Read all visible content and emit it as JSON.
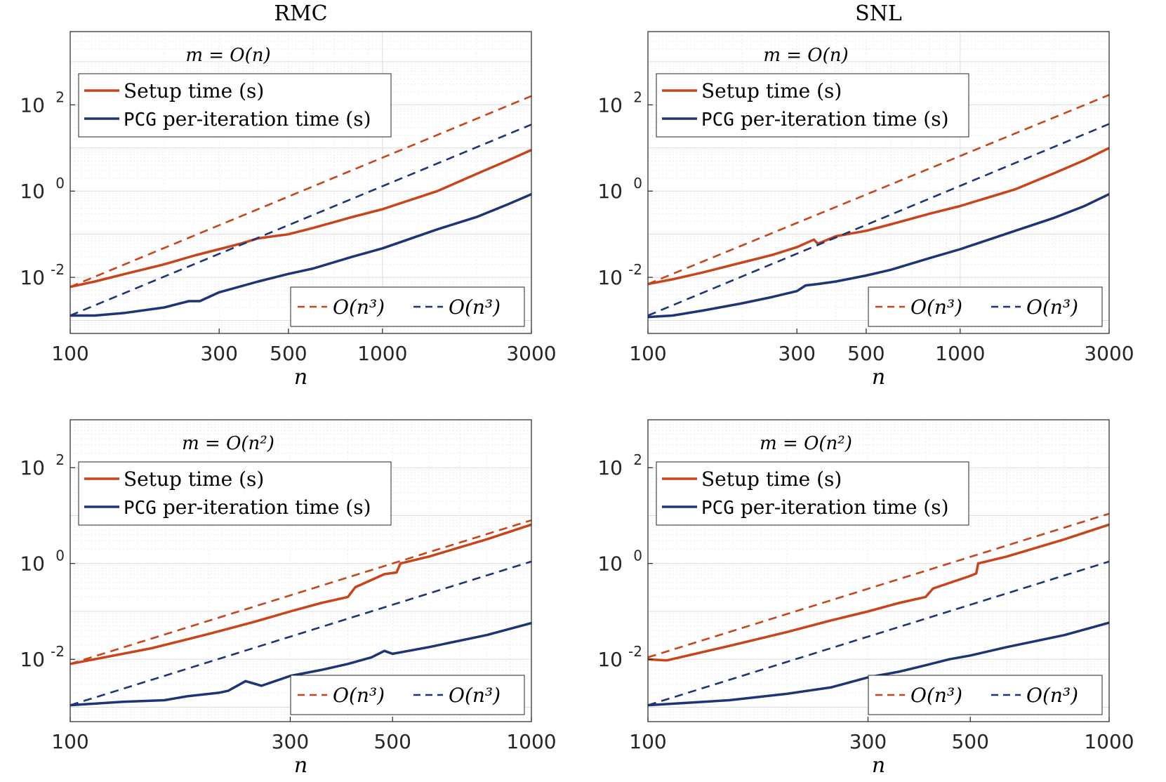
{
  "colors": {
    "setup": "#C8441B",
    "pcg": "#1F3476",
    "grid_major": "#dcdcdc",
    "grid_minor": "#ebebeb",
    "axis": "#262626"
  },
  "chart_data": [
    {
      "type": "line",
      "panel": "top-left",
      "title": "RMC",
      "annotation": "m = O(n)",
      "xlabel": "n",
      "xscale": "log",
      "yscale": "log",
      "xlim": [
        100,
        3000
      ],
      "ylim": [
        0.0005,
        5000
      ],
      "xticks": [
        100,
        300,
        500,
        1000,
        3000
      ],
      "xtick_labels": [
        "100",
        "300",
        "500",
        "1000",
        "3000"
      ],
      "yticks": [
        0.01,
        1,
        100
      ],
      "ytick_labels": [
        {
          "base": "10",
          "exp": "-2"
        },
        {
          "base": "10",
          "exp": "0"
        },
        {
          "base": "10",
          "exp": "2"
        }
      ],
      "legend_top": [
        {
          "label": "Setup time (s)",
          "mono_prefix": ""
        },
        {
          "label": " per-iteration time (s)",
          "mono_prefix": "PCG"
        }
      ],
      "legend_bottom": [
        "O(n³)",
        "O(n³)"
      ],
      "series": [
        {
          "name": "Setup time (s)",
          "color_key": "setup",
          "style": "solid",
          "x": [
            100,
            120,
            150,
            200,
            250,
            300,
            350,
            400,
            500,
            600,
            800,
            1000,
            1500,
            2000,
            2500,
            3000
          ],
          "y": [
            0.006,
            0.008,
            0.012,
            0.02,
            0.032,
            0.045,
            0.06,
            0.08,
            0.1,
            0.14,
            0.25,
            0.38,
            1.0,
            2.5,
            5.0,
            9.0
          ]
        },
        {
          "name": "PCG per-iteration time (s)",
          "color_key": "pcg",
          "style": "solid",
          "x": [
            100,
            120,
            150,
            200,
            240,
            260,
            300,
            400,
            500,
            600,
            800,
            1000,
            1500,
            2000,
            2500,
            3000
          ],
          "y": [
            0.0013,
            0.0013,
            0.0015,
            0.002,
            0.0028,
            0.0028,
            0.0045,
            0.008,
            0.012,
            0.016,
            0.03,
            0.047,
            0.13,
            0.25,
            0.48,
            0.85
          ]
        },
        {
          "name": "O(n³) setup reference",
          "color_key": "setup",
          "style": "dashed",
          "x": [
            100,
            3000
          ],
          "y": [
            0.006,
            160
          ]
        },
        {
          "name": "O(n³) PCG reference",
          "color_key": "pcg",
          "style": "dashed",
          "x": [
            100,
            3000
          ],
          "y": [
            0.0013,
            35
          ]
        }
      ]
    },
    {
      "type": "line",
      "panel": "top-right",
      "title": "SNL",
      "annotation": "m = O(n)",
      "xlabel": "n",
      "xscale": "log",
      "yscale": "log",
      "xlim": [
        100,
        3000
      ],
      "ylim": [
        0.0005,
        5000
      ],
      "xticks": [
        100,
        300,
        500,
        1000,
        3000
      ],
      "xtick_labels": [
        "100",
        "300",
        "500",
        "1000",
        "3000"
      ],
      "yticks": [
        0.01,
        1,
        100
      ],
      "ytick_labels": [
        {
          "base": "10",
          "exp": "-2"
        },
        {
          "base": "10",
          "exp": "0"
        },
        {
          "base": "10",
          "exp": "2"
        }
      ],
      "legend_top": [
        {
          "label": "Setup time (s)",
          "mono_prefix": ""
        },
        {
          "label": " per-iteration time (s)",
          "mono_prefix": "PCG"
        }
      ],
      "legend_bottom": [
        "O(n³)",
        "O(n³)"
      ],
      "series": [
        {
          "name": "Setup time (s)",
          "color_key": "setup",
          "style": "solid",
          "x": [
            100,
            120,
            150,
            200,
            250,
            300,
            340,
            350,
            400,
            500,
            600,
            800,
            1000,
            1500,
            2000,
            2500,
            3000
          ],
          "y": [
            0.007,
            0.009,
            0.013,
            0.022,
            0.033,
            0.05,
            0.075,
            0.06,
            0.09,
            0.12,
            0.17,
            0.3,
            0.45,
            1.1,
            2.6,
            5.2,
            10.0
          ]
        },
        {
          "name": "PCG per-iteration time (s)",
          "color_key": "pcg",
          "style": "solid",
          "x": [
            100,
            120,
            150,
            200,
            250,
            300,
            320,
            350,
            400,
            500,
            600,
            800,
            1000,
            1500,
            2000,
            2500,
            3000
          ],
          "y": [
            0.0012,
            0.0013,
            0.0017,
            0.0025,
            0.0035,
            0.0048,
            0.0065,
            0.007,
            0.008,
            0.011,
            0.015,
            0.028,
            0.045,
            0.12,
            0.24,
            0.45,
            0.85
          ]
        },
        {
          "name": "O(n³) setup reference",
          "color_key": "setup",
          "style": "dashed",
          "x": [
            100,
            3000
          ],
          "y": [
            0.007,
            170
          ]
        },
        {
          "name": "O(n³) PCG reference",
          "color_key": "pcg",
          "style": "dashed",
          "x": [
            100,
            3000
          ],
          "y": [
            0.0013,
            36
          ]
        }
      ]
    },
    {
      "type": "line",
      "panel": "bottom-left",
      "title": "",
      "annotation": "m = O(n²)",
      "xlabel": "n",
      "xscale": "log",
      "yscale": "log",
      "xlim": [
        100,
        1000
      ],
      "ylim": [
        0.0005,
        1000
      ],
      "xticks": [
        100,
        300,
        500,
        1000
      ],
      "xtick_labels": [
        "100",
        "300",
        "500",
        "1000"
      ],
      "yticks": [
        0.01,
        1,
        100
      ],
      "ytick_labels": [
        {
          "base": "10",
          "exp": "-2"
        },
        {
          "base": "10",
          "exp": "0"
        },
        {
          "base": "10",
          "exp": "2"
        }
      ],
      "legend_top": [
        {
          "label": "Setup time (s)",
          "mono_prefix": ""
        },
        {
          "label": " per-iteration time (s)",
          "mono_prefix": "PCG"
        }
      ],
      "legend_bottom": [
        "O(n³)",
        "O(n³)"
      ],
      "series": [
        {
          "name": "Setup time (s)",
          "color_key": "setup",
          "style": "solid",
          "x": [
            100,
            150,
            200,
            250,
            300,
            350,
            400,
            415,
            480,
            510,
            520,
            600,
            800,
            1000
          ],
          "y": [
            0.008,
            0.017,
            0.034,
            0.06,
            0.1,
            0.15,
            0.2,
            0.32,
            0.6,
            0.65,
            1.0,
            1.4,
            3.2,
            6.5
          ]
        },
        {
          "name": "PCG per-iteration time (s)",
          "color_key": "pcg",
          "style": "solid",
          "x": [
            100,
            130,
            160,
            180,
            210,
            220,
            240,
            260,
            300,
            350,
            400,
            450,
            480,
            500,
            600,
            800,
            1000
          ],
          "y": [
            0.0011,
            0.0013,
            0.0014,
            0.0017,
            0.002,
            0.0022,
            0.0035,
            0.0028,
            0.0045,
            0.006,
            0.008,
            0.011,
            0.015,
            0.013,
            0.018,
            0.032,
            0.057
          ]
        },
        {
          "name": "O(n³) setup reference",
          "color_key": "setup",
          "style": "dashed",
          "x": [
            100,
            1000
          ],
          "y": [
            0.008,
            8.0
          ]
        },
        {
          "name": "O(n³) PCG reference",
          "color_key": "pcg",
          "style": "dashed",
          "x": [
            100,
            1000
          ],
          "y": [
            0.0011,
            1.1
          ]
        }
      ]
    },
    {
      "type": "line",
      "panel": "bottom-right",
      "title": "",
      "annotation": "m = O(n²)",
      "xlabel": "n",
      "xscale": "log",
      "yscale": "log",
      "xlim": [
        100,
        1000
      ],
      "ylim": [
        0.0005,
        1000
      ],
      "xticks": [
        100,
        300,
        500,
        1000
      ],
      "xtick_labels": [
        "100",
        "300",
        "500",
        "1000"
      ],
      "yticks": [
        0.01,
        1,
        100
      ],
      "ytick_labels": [
        {
          "base": "10",
          "exp": "-2"
        },
        {
          "base": "10",
          "exp": "0"
        },
        {
          "base": "10",
          "exp": "2"
        }
      ],
      "legend_top": [
        {
          "label": "Setup time (s)",
          "mono_prefix": ""
        },
        {
          "label": " per-iteration time (s)",
          "mono_prefix": "PCG"
        }
      ],
      "legend_bottom": [
        "O(n³)",
        "O(n³)"
      ],
      "series": [
        {
          "name": "Setup time (s)",
          "color_key": "setup",
          "style": "solid",
          "x": [
            100,
            110,
            150,
            200,
            250,
            300,
            350,
            400,
            415,
            500,
            515,
            520,
            600,
            800,
            1000
          ],
          "y": [
            0.01,
            0.0095,
            0.019,
            0.037,
            0.065,
            0.1,
            0.15,
            0.2,
            0.3,
            0.55,
            0.62,
            1.0,
            1.4,
            3.2,
            6.5
          ]
        },
        {
          "name": "PCG per-iteration time (s)",
          "color_key": "pcg",
          "style": "solid",
          "x": [
            100,
            150,
            200,
            250,
            280,
            300,
            350,
            400,
            450,
            500,
            600,
            800,
            1000
          ],
          "y": [
            0.0011,
            0.0014,
            0.0019,
            0.0026,
            0.0035,
            0.0042,
            0.0055,
            0.0075,
            0.01,
            0.012,
            0.018,
            0.032,
            0.058
          ]
        },
        {
          "name": "O(n³) setup reference",
          "color_key": "setup",
          "style": "dashed",
          "x": [
            100,
            1000
          ],
          "y": [
            0.011,
            11.0
          ]
        },
        {
          "name": "O(n³) PCG reference",
          "color_key": "pcg",
          "style": "dashed",
          "x": [
            100,
            1000
          ],
          "y": [
            0.0011,
            1.1
          ]
        }
      ]
    }
  ]
}
